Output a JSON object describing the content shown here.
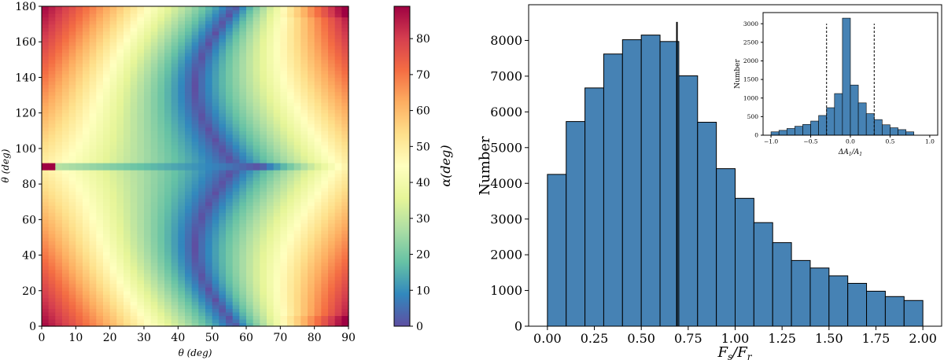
{
  "figure": {
    "panels": 3
  },
  "chart_data": [
    {
      "type": "heatmap",
      "xlabel": "θ (deg)",
      "ylabel": "θ (deg)",
      "xlim": [
        0,
        90
      ],
      "ylim": [
        0,
        180
      ],
      "xticks": [
        0,
        10,
        20,
        30,
        40,
        50,
        60,
        70,
        80,
        90
      ],
      "yticks": [
        0,
        20,
        40,
        60,
        80,
        100,
        120,
        140,
        160,
        180
      ],
      "colorbar": {
        "label": "α(deg)",
        "range": [
          0,
          89
        ],
        "ticks": [
          0,
          10,
          20,
          30,
          40,
          50,
          60,
          70,
          80
        ],
        "colormap": "Spectral_r",
        "colors": [
          "#5e4fa2",
          "#3288bd",
          "#66c2a5",
          "#abdda4",
          "#e6f598",
          "#ffffbf",
          "#fee08b",
          "#fdae61",
          "#f46d43",
          "#d53e4f",
          "#9e0142"
        ]
      },
      "features": {
        "minimum_band": "valley of ~0 deg running from about x=57 at y=0 through x=45 near y=45 and x=57 at y=90",
        "maxima": [
          {
            "x": 0,
            "y": 90,
            "value": 89
          },
          {
            "x": 90,
            "y": 0,
            "value": 89
          },
          {
            "x": 90,
            "y": 180,
            "value": 85
          }
        ],
        "horizontal_low_line_y": 90
      }
    },
    {
      "type": "bar",
      "xlabel": "Fs/Fr",
      "ylabel": "Number",
      "xlim": [
        -0.1,
        2.1
      ],
      "ylim": [
        0,
        9000
      ],
      "xticks": [
        "0.00",
        "0.25",
        "0.50",
        "0.75",
        "1.00",
        "1.25",
        "1.50",
        "1.75",
        "2.00"
      ],
      "yticks": [
        0,
        1000,
        2000,
        3000,
        4000,
        5000,
        6000,
        7000,
        8000
      ],
      "bin_edges": [
        0.0,
        0.1,
        0.2,
        0.3,
        0.4,
        0.5,
        0.6,
        0.7,
        0.8,
        0.9,
        1.0,
        1.1,
        1.2,
        1.3,
        1.4,
        1.5,
        1.6,
        1.7,
        1.8,
        1.9,
        2.0
      ],
      "values": [
        4250,
        5730,
        6670,
        7620,
        8020,
        8150,
        7970,
        7010,
        5710,
        4410,
        3580,
        2900,
        2340,
        1840,
        1630,
        1410,
        1200,
        980,
        830,
        720
      ],
      "bar_color": "#4682b4",
      "vline": {
        "x": 0.69,
        "ymax": 8520
      }
    },
    {
      "type": "bar",
      "inset": true,
      "xlabel": "ΔA1/A1",
      "ylabel": "Number",
      "xlim": [
        -1.1,
        1.1
      ],
      "ylim": [
        0,
        3300
      ],
      "xticks": [
        "−1.0",
        "−0.5",
        "0.0",
        "0.5",
        "1.0"
      ],
      "yticks": [
        0,
        500,
        1000,
        1500,
        2000,
        2500,
        3000
      ],
      "bin_edges": [
        -1.0,
        -0.9,
        -0.8,
        -0.7,
        -0.6,
        -0.5,
        -0.4,
        -0.3,
        -0.2,
        -0.1,
        0.0,
        0.1,
        0.2,
        0.3,
        0.4,
        0.5,
        0.6,
        0.7,
        0.8,
        0.9,
        1.0
      ],
      "values": [
        90,
        130,
        180,
        240,
        290,
        380,
        530,
        740,
        1120,
        3150,
        1350,
        870,
        580,
        420,
        280,
        200,
        150,
        90,
        0,
        0
      ],
      "bar_color": "#4682b4",
      "dashed_lines_x": [
        -0.3,
        0.3
      ]
    }
  ]
}
